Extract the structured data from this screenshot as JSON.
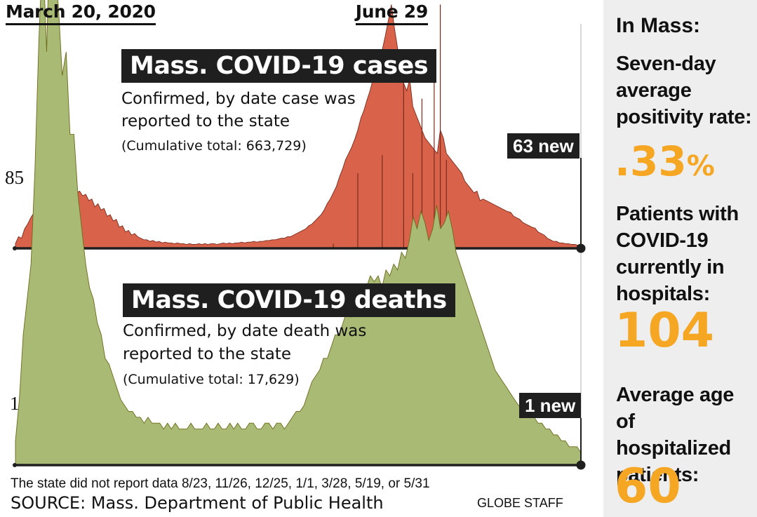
{
  "header": {
    "start_date": "March 20, 2020",
    "end_date": "June 29"
  },
  "chart_data": [
    {
      "type": "area",
      "title": "Mass. COVID-19 cases",
      "subtitle_line1": "Confirmed, by date case was",
      "subtitle_line2": "reported to the state",
      "cumulative": "(Cumulative total: 663,729)",
      "latest": "63 new",
      "y_tick_label": "85",
      "y_tick_value": 85,
      "x_range": [
        "March 20, 2020",
        "June 29"
      ],
      "fill_color": "#d9634a",
      "line_color": "#7a2a1c",
      "series": [
        {
          "values": [
            5,
            14,
            12,
            24,
            30,
            38,
            44,
            52,
            48,
            60,
            68,
            64,
            72,
            70,
            78,
            66,
            74,
            84,
            76,
            80,
            70,
            72,
            66,
            68,
            60,
            62,
            52,
            56,
            48,
            50,
            40,
            42,
            34,
            36,
            26,
            28,
            20,
            22,
            16,
            18,
            14,
            12,
            10,
            10,
            8,
            9,
            7,
            8,
            6,
            7,
            6,
            6,
            5,
            6,
            5,
            5,
            4,
            5,
            4,
            4,
            5,
            4,
            5,
            4,
            5,
            5,
            4,
            5,
            6,
            5,
            6,
            5,
            6,
            6,
            7,
            6,
            7,
            7,
            8,
            7,
            8,
            8,
            9,
            9,
            10,
            10,
            11,
            12,
            12,
            14,
            14,
            16,
            18,
            20,
            22,
            24,
            28,
            30,
            34,
            38,
            42,
            48,
            56,
            62,
            70,
            78,
            90,
            100,
            112,
            120,
            128,
            138,
            150,
            165,
            175,
            188,
            200,
            215,
            228,
            240,
            252,
            270,
            290,
            310,
            280,
            255,
            230,
            210,
            200,
            215,
            180,
            170,
            160,
            150,
            140,
            135,
            130,
            125,
            120,
            150,
            140,
            120,
            115,
            110,
            105,
            100,
            95,
            85,
            80,
            75,
            70,
            72,
            60,
            62,
            60,
            58,
            56,
            54,
            52,
            50,
            48,
            46,
            45,
            40,
            38,
            36,
            32,
            30,
            28,
            26,
            25,
            20,
            18,
            16,
            12,
            10,
            8,
            8,
            6,
            6,
            5,
            5,
            4,
            4,
            3,
            3
          ]
        },
        {
          "spikes": [
            [
              104,
              5
            ],
            [
              112,
              95
            ],
            [
              120,
              118
            ],
            [
              127,
              242
            ],
            [
              130,
              95
            ],
            [
              133,
              190
            ],
            [
              137,
              230
            ],
            [
              139,
              310
            ],
            [
              141,
              112
            ]
          ]
        }
      ]
    },
    {
      "type": "area",
      "title": "Mass. COVID-19 deaths",
      "subtitle_line1": "Confirmed, by date death was",
      "subtitle_line2": "reported to the state",
      "cumulative": "(Cumulative total: 17,629)",
      "latest": "1 new",
      "y_tick_label": "1",
      "y_tick_value": 1,
      "x_range": [
        "March 20, 2020",
        "June 29"
      ],
      "fill_color": "#a8ba74",
      "line_color": "#6e6a1a",
      "series": [
        {
          "values": [
            0.4,
            1.1,
            2.2,
            2.8,
            3.4,
            5.0,
            7.2,
            8.8,
            7.0,
            9.6,
            8.4,
            7.8,
            6.6,
            7.0,
            5.6,
            5.6,
            4.6,
            4.0,
            3.4,
            3.0,
            2.8,
            2.4,
            2.2,
            1.8,
            1.7,
            1.5,
            1.3,
            1.1,
            1.0,
            0.9,
            0.9,
            0.8,
            0.8,
            0.7,
            0.8,
            0.7,
            0.7,
            0.7,
            0.6,
            0.7,
            0.6,
            0.7,
            0.6,
            0.6,
            0.6,
            0.7,
            0.6,
            0.6,
            0.6,
            0.7,
            0.6,
            0.6,
            0.7,
            0.6,
            0.6,
            0.7,
            0.6,
            0.7,
            0.6,
            0.6,
            0.7,
            0.7,
            0.6,
            0.6,
            0.7,
            0.7,
            0.6,
            0.7,
            0.7,
            0.6,
            0.7,
            0.8,
            0.9,
            0.9,
            1.0,
            1.2,
            1.4,
            1.5,
            1.6,
            1.8,
            1.8,
            2.0,
            2.2,
            2.2,
            2.4,
            2.6,
            2.5,
            2.7,
            2.8,
            2.9,
            3.0,
            3.2,
            3.1,
            3.2,
            3.0,
            3.3,
            3.2,
            3.4,
            3.3,
            3.6,
            3.5,
            3.8,
            4.2,
            4.0,
            4.3,
            4.1,
            3.8,
            4.0,
            4.4,
            4.0,
            4.1,
            4.3,
            4.0,
            3.6,
            3.4,
            3.2,
            3.0,
            2.8,
            2.6,
            2.4,
            2.2,
            2.0,
            1.8,
            1.6,
            1.5,
            1.4,
            1.3,
            1.2,
            1.1,
            1.0,
            1.0,
            0.9,
            0.8,
            0.8,
            0.7,
            0.7,
            0.6,
            0.6,
            0.5,
            0.5,
            0.4,
            0.4,
            0.3,
            0.3,
            0.3,
            0.2
          ]
        }
      ]
    }
  ],
  "notes": {
    "footnote": "The state did not report data 8/23, 11/26, 12/25, 1/1, 3/28, 5/19, or 5/31",
    "source": "SOURCE: Mass. Department of Public Health",
    "credit": "GLOBE STAFF"
  },
  "sidebar": {
    "heading": "In Mass:",
    "positivity_label_1": "Seven-day",
    "positivity_label_2": "average",
    "positivity_label_3": "positivity rate:",
    "positivity_value": ".33",
    "positivity_unit": "%",
    "hosp_label_1": "Patients with",
    "hosp_label_2": "COVID-19",
    "hosp_label_3": "currently in",
    "hosp_label_4": "hospitals:",
    "hosp_value": "104",
    "age_label_1": "Average age of",
    "age_label_2": "hospitalized",
    "age_label_3": "patients:",
    "age_value": "60",
    "accent_color": "#f5a623"
  }
}
